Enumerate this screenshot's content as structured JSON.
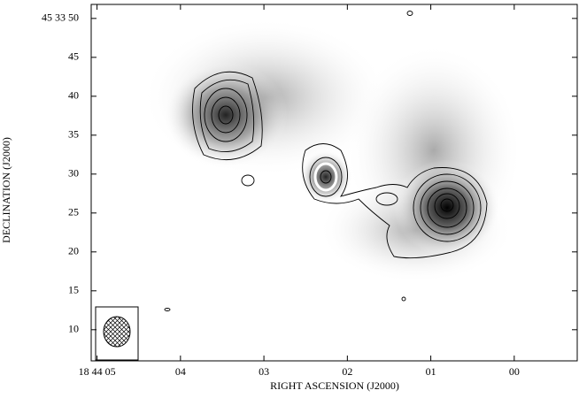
{
  "chart_data": {
    "type": "image",
    "x_label": "RIGHT ASCENSION (J2000)",
    "y_label": "DECLINATION (J2000)",
    "xlim": [
      5.07,
      -0.755
    ],
    "xticks": [
      {
        "value": 5,
        "label": "18 44 05"
      },
      {
        "value": 4,
        "label": "04"
      },
      {
        "value": 3,
        "label": "03"
      },
      {
        "value": 2,
        "label": "02"
      },
      {
        "value": 1,
        "label": "01"
      },
      {
        "value": 0,
        "label": "00"
      }
    ],
    "ylim": [
      6.0,
      51.8
    ],
    "yticks": [
      {
        "value": 50,
        "label": "45 33 50"
      },
      45,
      40,
      35,
      30,
      25,
      20,
      15,
      10
    ]
  }
}
